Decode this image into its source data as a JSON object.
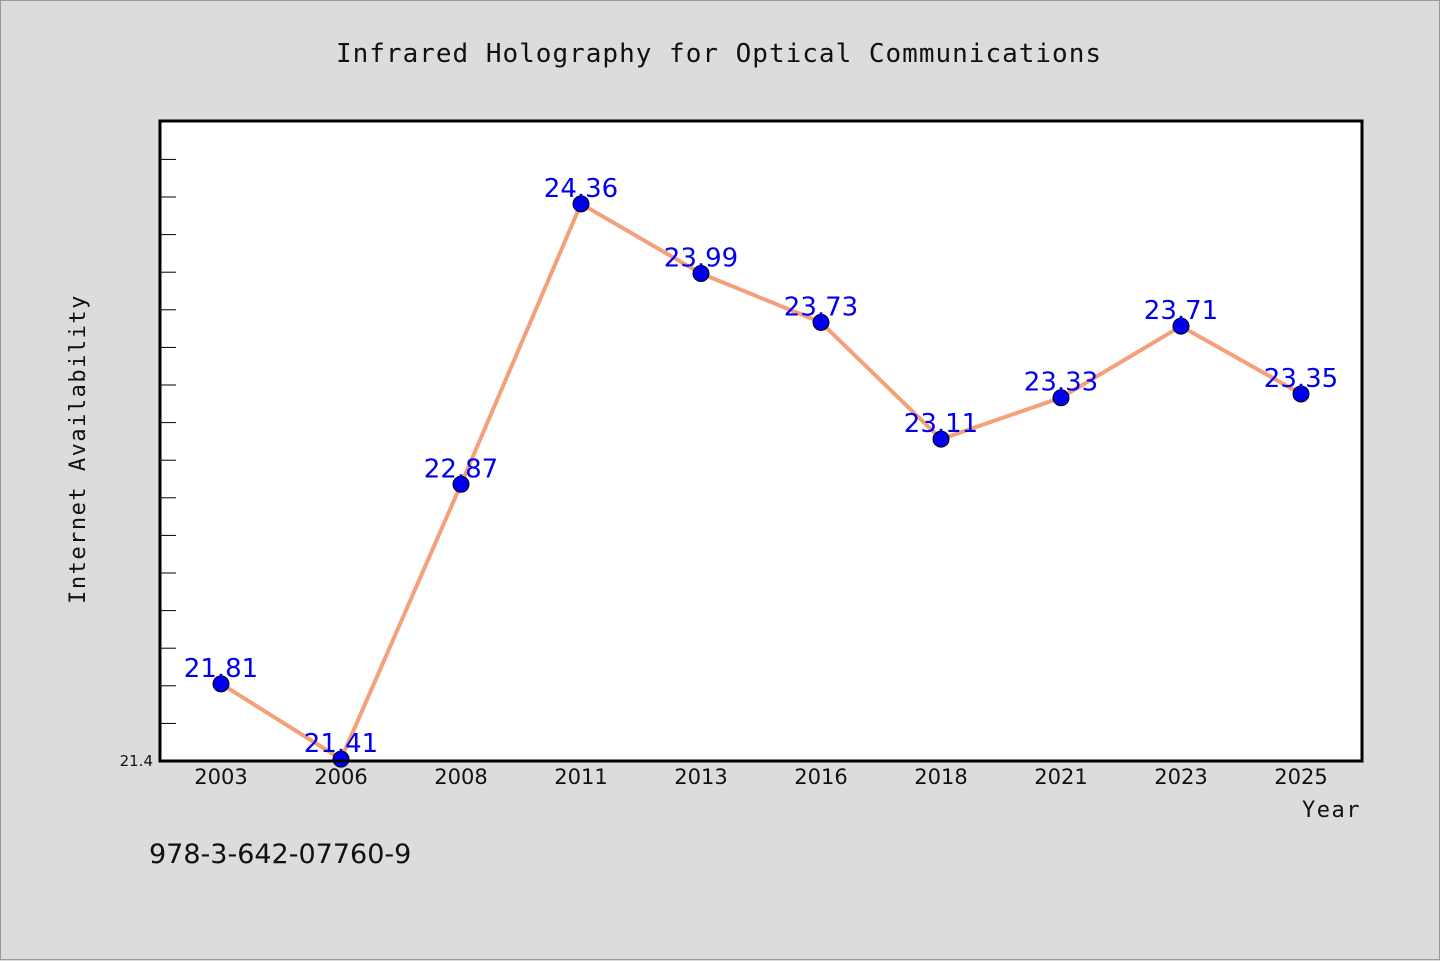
{
  "chart_data": {
    "type": "line",
    "title": "Infrared Holography for Optical Communications",
    "xlabel": "Year",
    "ylabel": "Internet Availability",
    "categories": [
      "2003",
      "2006",
      "2008",
      "2011",
      "2013",
      "2016",
      "2018",
      "2021",
      "2023",
      "2025"
    ],
    "series": [
      {
        "values": [
          21.81,
          21.41,
          22.87,
          24.36,
          23.99,
          23.73,
          23.11,
          23.33,
          23.71,
          23.35
        ],
        "line_color": "#f4a07a",
        "marker_color": "#0000ee"
      }
    ],
    "data_labels": [
      "21.81",
      "21.41",
      "22.87",
      "24.36",
      "23.99",
      "23.73",
      "23.11",
      "23.33",
      "23.71",
      "23.35"
    ],
    "yticks": [
      "21.4"
    ],
    "ylim": [
      21.4,
      24.8
    ],
    "grid": false,
    "legend": "none"
  },
  "footer": {
    "code": "978-3-642-07760-9"
  }
}
